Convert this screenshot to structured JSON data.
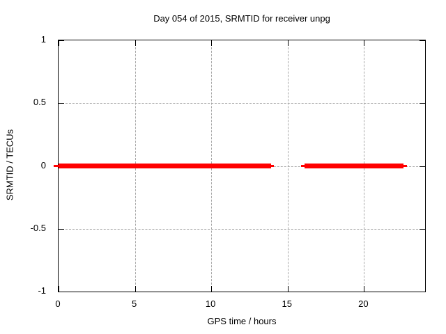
{
  "figure": {
    "background": "#ffffff",
    "text_color": "#000000",
    "grid_color": "#a8a8a8",
    "axis_color": "#000000"
  },
  "chart_data": {
    "type": "line",
    "title": "Day 054 of 2015, SRMTID for receiver unpg",
    "xlabel": "GPS time / hours",
    "ylabel": "SRMTID / TECUs",
    "xlim": [
      0,
      24
    ],
    "ylim": [
      -1,
      1
    ],
    "x_ticks": [
      {
        "value": 0,
        "label": "0"
      },
      {
        "value": 5,
        "label": "5"
      },
      {
        "value": 10,
        "label": "10"
      },
      {
        "value": 15,
        "label": "15"
      },
      {
        "value": 20,
        "label": "20"
      }
    ],
    "y_ticks": [
      {
        "value": -1,
        "label": "-1"
      },
      {
        "value": -0.5,
        "label": "-0.5"
      },
      {
        "value": 0,
        "label": "0"
      },
      {
        "value": 0.5,
        "label": "0.5"
      },
      {
        "value": 1,
        "label": "1"
      }
    ],
    "grid": "dashed",
    "legend": "none",
    "series": [
      {
        "name": "SRMTID",
        "color": "#ff0000",
        "style": "thick-horizontal-line",
        "y_value": 0,
        "segments": [
          {
            "x_start": 0.0,
            "x_end": 13.9,
            "cap_start": -0.3,
            "cap_end": 14.1
          },
          {
            "x_start": 16.1,
            "x_end": 22.6,
            "cap_start": 15.9,
            "cap_end": 22.8
          }
        ]
      }
    ]
  }
}
